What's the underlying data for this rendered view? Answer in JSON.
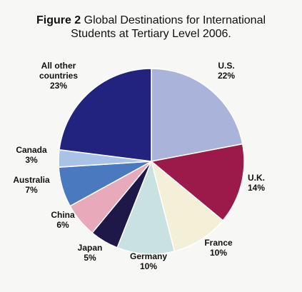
{
  "title": {
    "figure_label": "Figure 2",
    "line1": "Global Destinations for International",
    "line2": "Students at Tertiary Level 2006."
  },
  "chart_data": {
    "type": "pie",
    "title": "Figure 2 Global Destinations for International Students at Tertiary Level 2006.",
    "slices": [
      {
        "label": "U.S.",
        "value": 22,
        "value_label": "22%",
        "color": "#aab4db"
      },
      {
        "label": "U.K.",
        "value": 14,
        "value_label": "14%",
        "color": "#9b1a4a"
      },
      {
        "label": "France",
        "value": 10,
        "value_label": "10%",
        "color": "#f4f0d8"
      },
      {
        "label": "Germany",
        "value": 10,
        "value_label": "10%",
        "color": "#c9e2e1"
      },
      {
        "label": "Japan",
        "value": 5,
        "value_label": "5%",
        "color": "#1e1848"
      },
      {
        "label": "China",
        "value": 6,
        "value_label": "6%",
        "color": "#e8a9ba"
      },
      {
        "label": "Australia",
        "value": 7,
        "value_label": "7%",
        "color": "#4a79bf"
      },
      {
        "label": "Canada",
        "value": 3,
        "value_label": "3%",
        "color": "#a9c3e6"
      },
      {
        "label": "All other countries",
        "value": 23,
        "value_label": "23%",
        "color": "#22237f"
      }
    ]
  }
}
